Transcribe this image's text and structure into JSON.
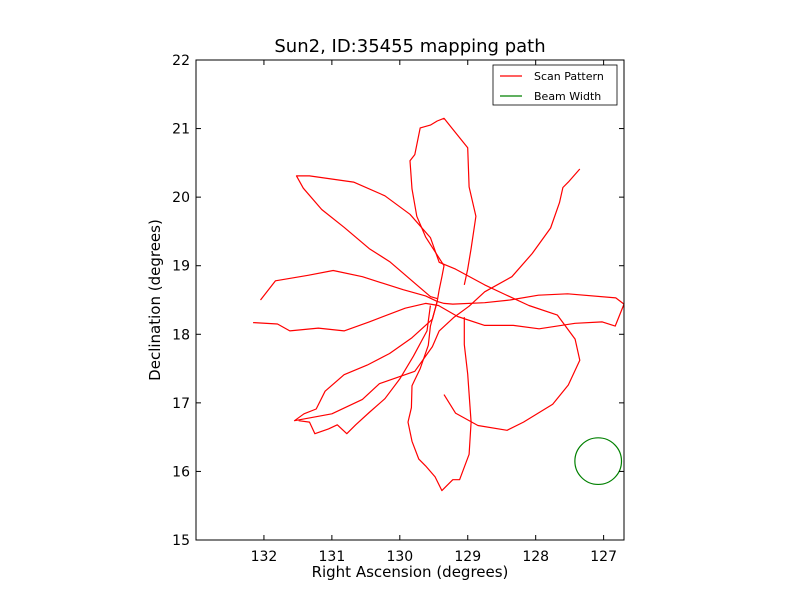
{
  "chart_data": {
    "type": "line",
    "title": "Sun2, ID:35455 mapping path",
    "xlabel": "Right Ascension (degrees)",
    "ylabel": "Declination (degrees)",
    "xlim": [
      133.0,
      126.7
    ],
    "ylim": [
      15,
      22
    ],
    "x_inverted": true,
    "xticks": [
      132,
      131,
      130,
      129,
      128,
      127
    ],
    "xtick_labels": [
      "132",
      "131",
      "130",
      "129",
      "128",
      "127"
    ],
    "yticks": [
      15,
      16,
      17,
      18,
      19,
      20,
      21,
      22
    ],
    "ytick_labels": [
      "15",
      "16",
      "17",
      "18",
      "19",
      "20",
      "21",
      "22"
    ],
    "grid": false,
    "legend_position": "top-right",
    "colors": {
      "scan": "#ff0000",
      "beam": "#008000"
    },
    "series": [
      {
        "name": "Scan Pattern",
        "style": "line",
        "x": [
          132.05,
          131.83,
          131.35,
          130.98,
          130.55,
          129.95,
          129.62,
          129.45,
          129.35,
          129.22,
          128.75,
          128.38,
          127.96,
          127.53,
          126.82,
          126.7,
          126.83,
          127.02,
          127.42,
          127.95,
          128.33,
          128.75,
          129.15,
          129.43,
          129.62,
          129.92,
          130.45,
          130.82,
          131.2,
          131.62,
          131.8,
          132.16
        ],
        "y": [
          18.5,
          18.78,
          18.86,
          18.93,
          18.84,
          18.65,
          18.56,
          18.48,
          18.45,
          18.44,
          18.46,
          18.5,
          18.57,
          18.59,
          18.53,
          18.44,
          18.12,
          18.18,
          18.16,
          18.08,
          18.13,
          18.13,
          18.26,
          18.42,
          18.45,
          18.38,
          18.18,
          18.05,
          18.09,
          18.05,
          18.15,
          18.17
        ]
      },
      {
        "name": "Scan Pattern",
        "style": "line",
        "x": [
          129.45,
          129.52,
          129.82,
          130.15,
          130.48,
          130.82,
          131.1,
          131.23,
          131.41,
          131.55,
          131.0,
          130.55,
          130.3,
          129.78,
          129.52,
          129.42,
          129.2,
          128.98,
          128.75,
          128.35,
          128.05,
          127.78,
          127.65,
          127.6,
          127.52,
          127.35
        ],
        "y": [
          18.48,
          18.22,
          17.95,
          17.72,
          17.55,
          17.41,
          17.17,
          16.91,
          16.84,
          16.74,
          16.84,
          17.05,
          17.28,
          17.46,
          17.82,
          18.05,
          18.25,
          18.41,
          18.62,
          18.84,
          19.18,
          19.55,
          19.92,
          20.14,
          20.22,
          20.41
        ]
      },
      {
        "name": "Scan Pattern",
        "style": "line",
        "x": [
          129.45,
          129.55,
          129.75,
          130.15,
          130.45,
          130.82,
          131.15,
          131.42,
          131.52,
          131.33,
          130.68,
          130.22,
          129.85,
          129.55,
          129.42,
          129.18,
          128.75,
          128.45,
          128.1,
          127.68,
          127.42,
          127.35,
          127.52,
          127.75,
          128.18,
          128.42,
          128.85,
          129.18,
          129.35
        ],
        "y": [
          18.52,
          18.55,
          18.72,
          19.06,
          19.25,
          19.56,
          19.82,
          20.13,
          20.31,
          20.31,
          20.22,
          20.02,
          19.75,
          19.41,
          19.05,
          18.95,
          18.72,
          18.58,
          18.42,
          18.28,
          17.93,
          17.62,
          17.26,
          16.98,
          16.72,
          16.6,
          16.67,
          16.85,
          17.12
        ]
      },
      {
        "name": "Scan Pattern",
        "style": "line",
        "x": [
          129.45,
          129.42,
          129.38,
          129.35,
          129.62,
          129.75,
          129.82,
          129.85,
          129.78,
          129.7,
          129.55,
          129.45,
          129.35,
          129.0,
          128.98,
          128.88,
          128.95,
          129.0,
          129.05
        ],
        "y": [
          18.48,
          18.65,
          18.84,
          19.0,
          19.42,
          19.72,
          20.12,
          20.53,
          20.62,
          21.01,
          21.05,
          21.11,
          21.15,
          20.72,
          20.15,
          19.72,
          19.25,
          18.95,
          18.72
        ]
      },
      {
        "name": "Scan Pattern",
        "style": "line",
        "x": [
          129.45,
          129.55,
          129.58,
          129.7,
          129.82,
          129.83,
          129.88,
          129.82,
          129.72,
          129.62,
          129.48,
          129.38,
          129.22,
          129.12,
          128.98,
          128.95,
          129.0,
          129.05,
          129.05
        ],
        "y": [
          18.48,
          18.12,
          17.84,
          17.5,
          17.25,
          16.93,
          16.72,
          16.44,
          16.18,
          16.08,
          15.92,
          15.72,
          15.88,
          15.88,
          16.25,
          16.72,
          17.42,
          17.85,
          18.25
        ]
      },
      {
        "name": "Scan Pattern",
        "style": "line",
        "x": [
          131.49,
          131.33,
          131.25,
          131.05,
          130.92,
          130.78,
          130.65,
          130.45,
          130.22,
          130.0,
          129.8,
          129.6,
          129.55
        ],
        "y": [
          16.74,
          16.72,
          16.55,
          16.62,
          16.68,
          16.55,
          16.68,
          16.86,
          17.06,
          17.35,
          17.68,
          18.05,
          18.42
        ]
      }
    ],
    "beam": {
      "name": "Beam Width",
      "center_x": 127.08,
      "center_y": 16.15,
      "radius": 0.34
    },
    "legend": [
      "Scan Pattern",
      "Beam Width"
    ]
  }
}
